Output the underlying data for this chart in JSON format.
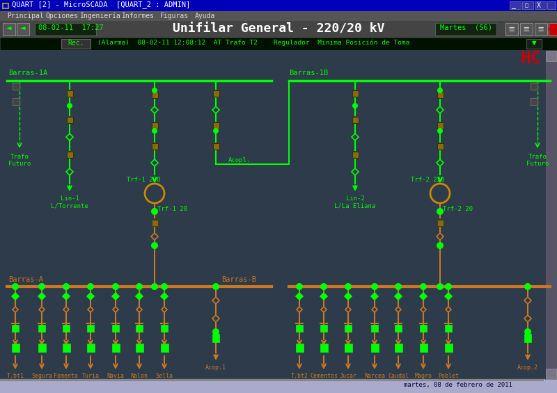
{
  "title_bar_text": "QUART [2] - MicroSCADA  [QUART_2 : ADMIN]",
  "title_bar_bg": "#0000bb",
  "title_bar_fg": "#ffffff",
  "menu_items": [
    "Principal",
    "Opciones",
    "Ingeniería",
    "Informes",
    "Figuras",
    "Ayuda"
  ],
  "menu_bg": "#555555",
  "menu_fg": "#dddddd",
  "toolbar_bg": "#444444",
  "toolbar_time": "08-02-11  17:27",
  "toolbar_title": "Unifilar General - 220/20 kV",
  "toolbar_day": "Martes  (S6)",
  "alarm_bg": "#1a3300",
  "alarm_text": "(Alarma)  08-02-11 12:08:12  AT Trafo T2    Regulador  Minima Posición de Toma",
  "alarm_fg": "#00ff00",
  "main_bg": "#2d3b4a",
  "G": "#00ff00",
  "O": "#cc7722",
  "label_barras1A": "Barras-1A",
  "label_barras1B": "Barras-1B",
  "label_barrasA": "Barras-A",
  "label_barrasB": "Barras-B",
  "label_trf1_220": "Trf-1 220",
  "label_trf1_20": "Trf-1 20",
  "label_trf2_220": "Trf-2 220",
  "label_trf2_20": "Trf-2 20",
  "label_lin1": "Lin-1\nL/Torrente",
  "label_lin2": "Lin-2\nL/La Eliana",
  "label_acopl": "Acopl.",
  "bottom_labels": [
    "T.bt1",
    "Segura",
    "Fomento",
    "Turia",
    "Navia",
    "Nalon",
    "Sella",
    "Acop.1",
    "T.bt2",
    "Cementos",
    "Jucar",
    "Narcea",
    "Caudal",
    "Magro",
    "Poblet",
    "Acop.2"
  ],
  "status_bar_text": "martes, 08 de febrero de 2011",
  "hc_logo_color": "#cc0000",
  "brown": "#8B6914",
  "dark_brown": "#5a3a00"
}
